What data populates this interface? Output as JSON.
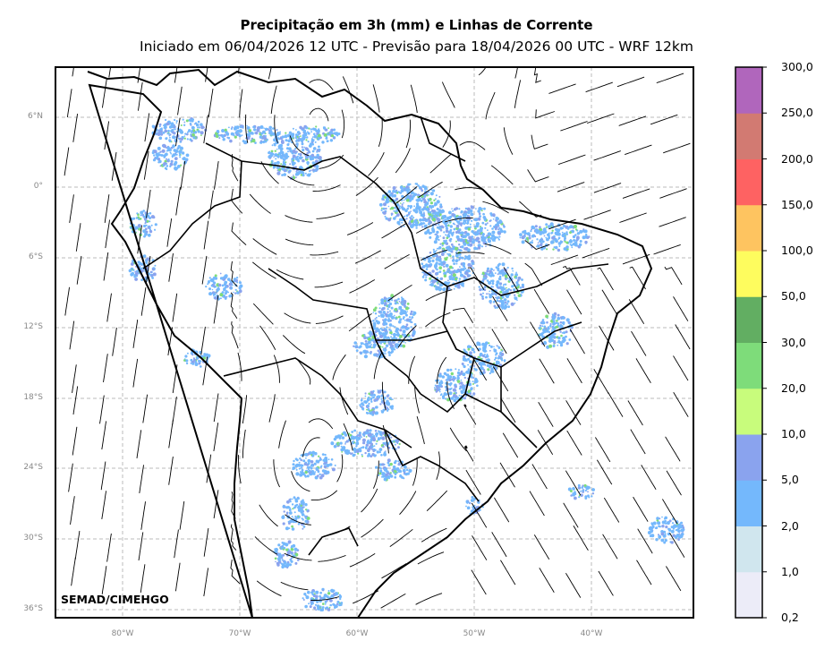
{
  "title": "Precipitação em 3h (mm) e Linhas de Corrente",
  "subtitle": "Iniciado em 06/04/2026 12 UTC - Previsão para 18/04/2026 00 UTC - WRF 12km",
  "watermark": "SEMAD/CIMEHGO",
  "lat_labels": [
    "6°N",
    "0°",
    "6°S",
    "12°S",
    "18°S",
    "24°S",
    "30°S",
    "36°S"
  ],
  "lon_labels": [
    "80°W",
    "70°W",
    "60°W",
    "50°W",
    "40°W"
  ],
  "colorbar": {
    "levels": [
      "0,2",
      "1,0",
      "2,0",
      "5,0",
      "10,0",
      "20,0",
      "30,0",
      "50,0",
      "100,0",
      "150,0",
      "200,0",
      "250,0",
      "300,0"
    ],
    "colors": [
      "#ececf8",
      "#d0e6ee",
      "#74b8fc",
      "#8aa3ee",
      "#c8fc7c",
      "#7edc7a",
      "#62ae62",
      "#fefc5e",
      "#fec460",
      "#fe6262",
      "#d27a72",
      "#b066bc"
    ]
  },
  "map_colors": {
    "rain_light": "#74b8fc",
    "rain_mid": "#8aa3ee",
    "rain_heavy": "#7edc7a",
    "grid": "#bbbbbb"
  }
}
